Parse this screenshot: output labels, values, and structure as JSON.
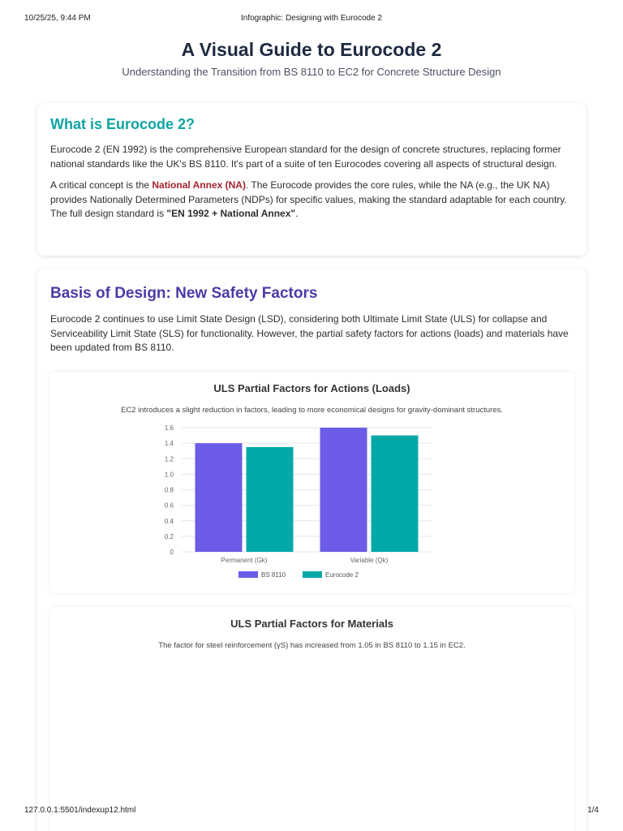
{
  "print_header": {
    "date": "10/25/25, 9:44 PM",
    "title": "Infographic: Designing with Eurocode 2"
  },
  "print_footer": {
    "url": "127.0.0.1:5501/indexup12.html",
    "page": "1/4"
  },
  "header": {
    "title": "A Visual Guide to Eurocode 2",
    "subtitle": "Understanding the Transition from BS 8110 to EC2 for Concrete Structure Design"
  },
  "what_is": {
    "heading": "What is Eurocode 2?",
    "para1": "Eurocode 2 (EN 1992) is the comprehensive European standard for the design of concrete structures, replacing former national standards like the UK's BS 8110. It's part of a suite of ten Eurocodes covering all aspects of structural design.",
    "para2_start": "A critical concept is the ",
    "para2_term": "National Annex (NA)",
    "para2_middle": ". The Eurocode provides the core rules, while the NA (e.g., the UK NA) provides Nationally Determined Parameters (NDPs) for specific values, making the standard adaptable for each country. The full design standard is ",
    "para2_formula": "\"EN 1992 + National Annex\"",
    "para2_end": "."
  },
  "basis": {
    "heading": "Basis of Design: New Safety Factors",
    "para": "Eurocode 2 continues to use Limit State Design (LSD), considering both Ultimate Limit State (ULS) for collapse and Serviceability Limit State (SLS) for functionality. However, the partial safety factors for actions (loads) and materials have been updated from BS 8110."
  },
  "chart_actions": {
    "title": "ULS Partial Factors for Actions (Loads)",
    "caption": "EC2 introduces a slight reduction in factors, leading to more economical designs for gravity-dominant structures."
  },
  "chart_materials": {
    "title": "ULS Partial Factors for Materials",
    "caption": "The factor for steel reinforcement (γS) has increased from 1.05 in BS 8110 to 1.15 in EC2."
  },
  "chart_data": {
    "type": "bar",
    "categories": [
      "Permanent (Gk)",
      "Variable (Qk)"
    ],
    "series": [
      {
        "name": "BS 8110",
        "values": [
          1.4,
          1.6
        ],
        "color": "#6c5ce7"
      },
      {
        "name": "Eurocode 2",
        "values": [
          1.35,
          1.5
        ],
        "color": "#00a8a8"
      }
    ],
    "yticks": [
      "0",
      "0.2",
      "0.4",
      "0.6",
      "0.8",
      "1.0",
      "1.2",
      "1.4",
      "1.6"
    ],
    "ylim": [
      0,
      1.6
    ],
    "legend": "bottom",
    "grid": true
  }
}
